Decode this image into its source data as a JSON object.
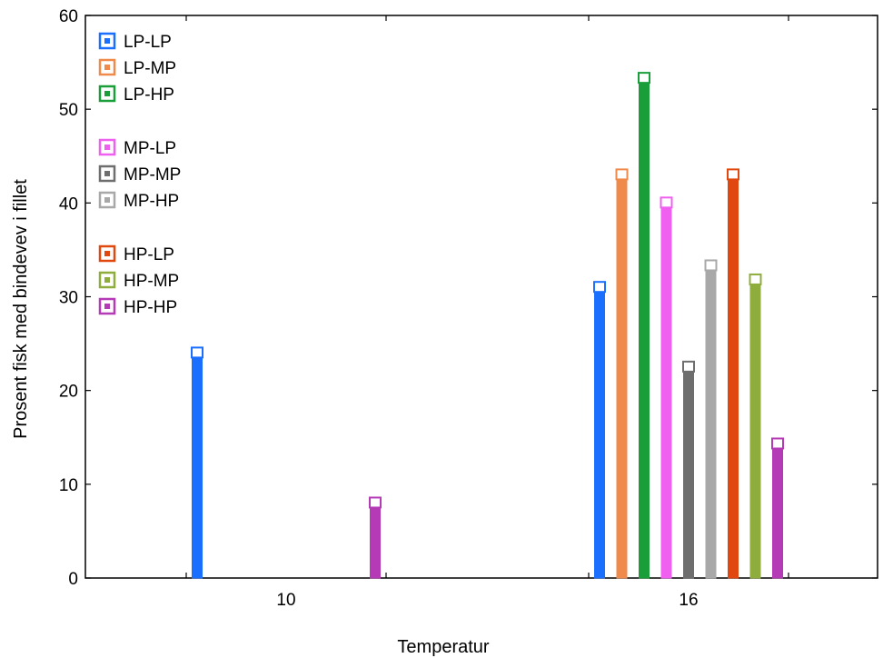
{
  "chart_data": {
    "type": "bar",
    "xlabel": "Temperatur",
    "ylabel": "Prosent fisk med bindevev i fillet",
    "ylim": [
      0,
      60
    ],
    "yticks": [
      0,
      10,
      20,
      30,
      40,
      50,
      60
    ],
    "categories": [
      "10",
      "16"
    ],
    "grid": false,
    "legend_position": "top-left",
    "series": [
      {
        "name": "LP-LP",
        "color": "#1a6fff",
        "values": [
          24,
          31
        ]
      },
      {
        "name": "LP-MP",
        "color": "#f08a4b",
        "values": [
          null,
          43
        ]
      },
      {
        "name": "LP-HP",
        "color": "#1a9e3a",
        "values": [
          null,
          53.3
        ]
      },
      {
        "name": "MP-LP",
        "color": "#f060f0",
        "values": [
          null,
          40
        ]
      },
      {
        "name": "MP-MP",
        "color": "#6e6e6e",
        "values": [
          null,
          22.5
        ]
      },
      {
        "name": "MP-HP",
        "color": "#a8a8a8",
        "values": [
          null,
          33.3
        ]
      },
      {
        "name": "HP-LP",
        "color": "#e0480f",
        "values": [
          null,
          43
        ]
      },
      {
        "name": "HP-MP",
        "color": "#8fad3c",
        "values": [
          null,
          31.8
        ]
      },
      {
        "name": "HP-HP",
        "color": "#b53ab5",
        "values": [
          8,
          14.3
        ]
      }
    ]
  }
}
